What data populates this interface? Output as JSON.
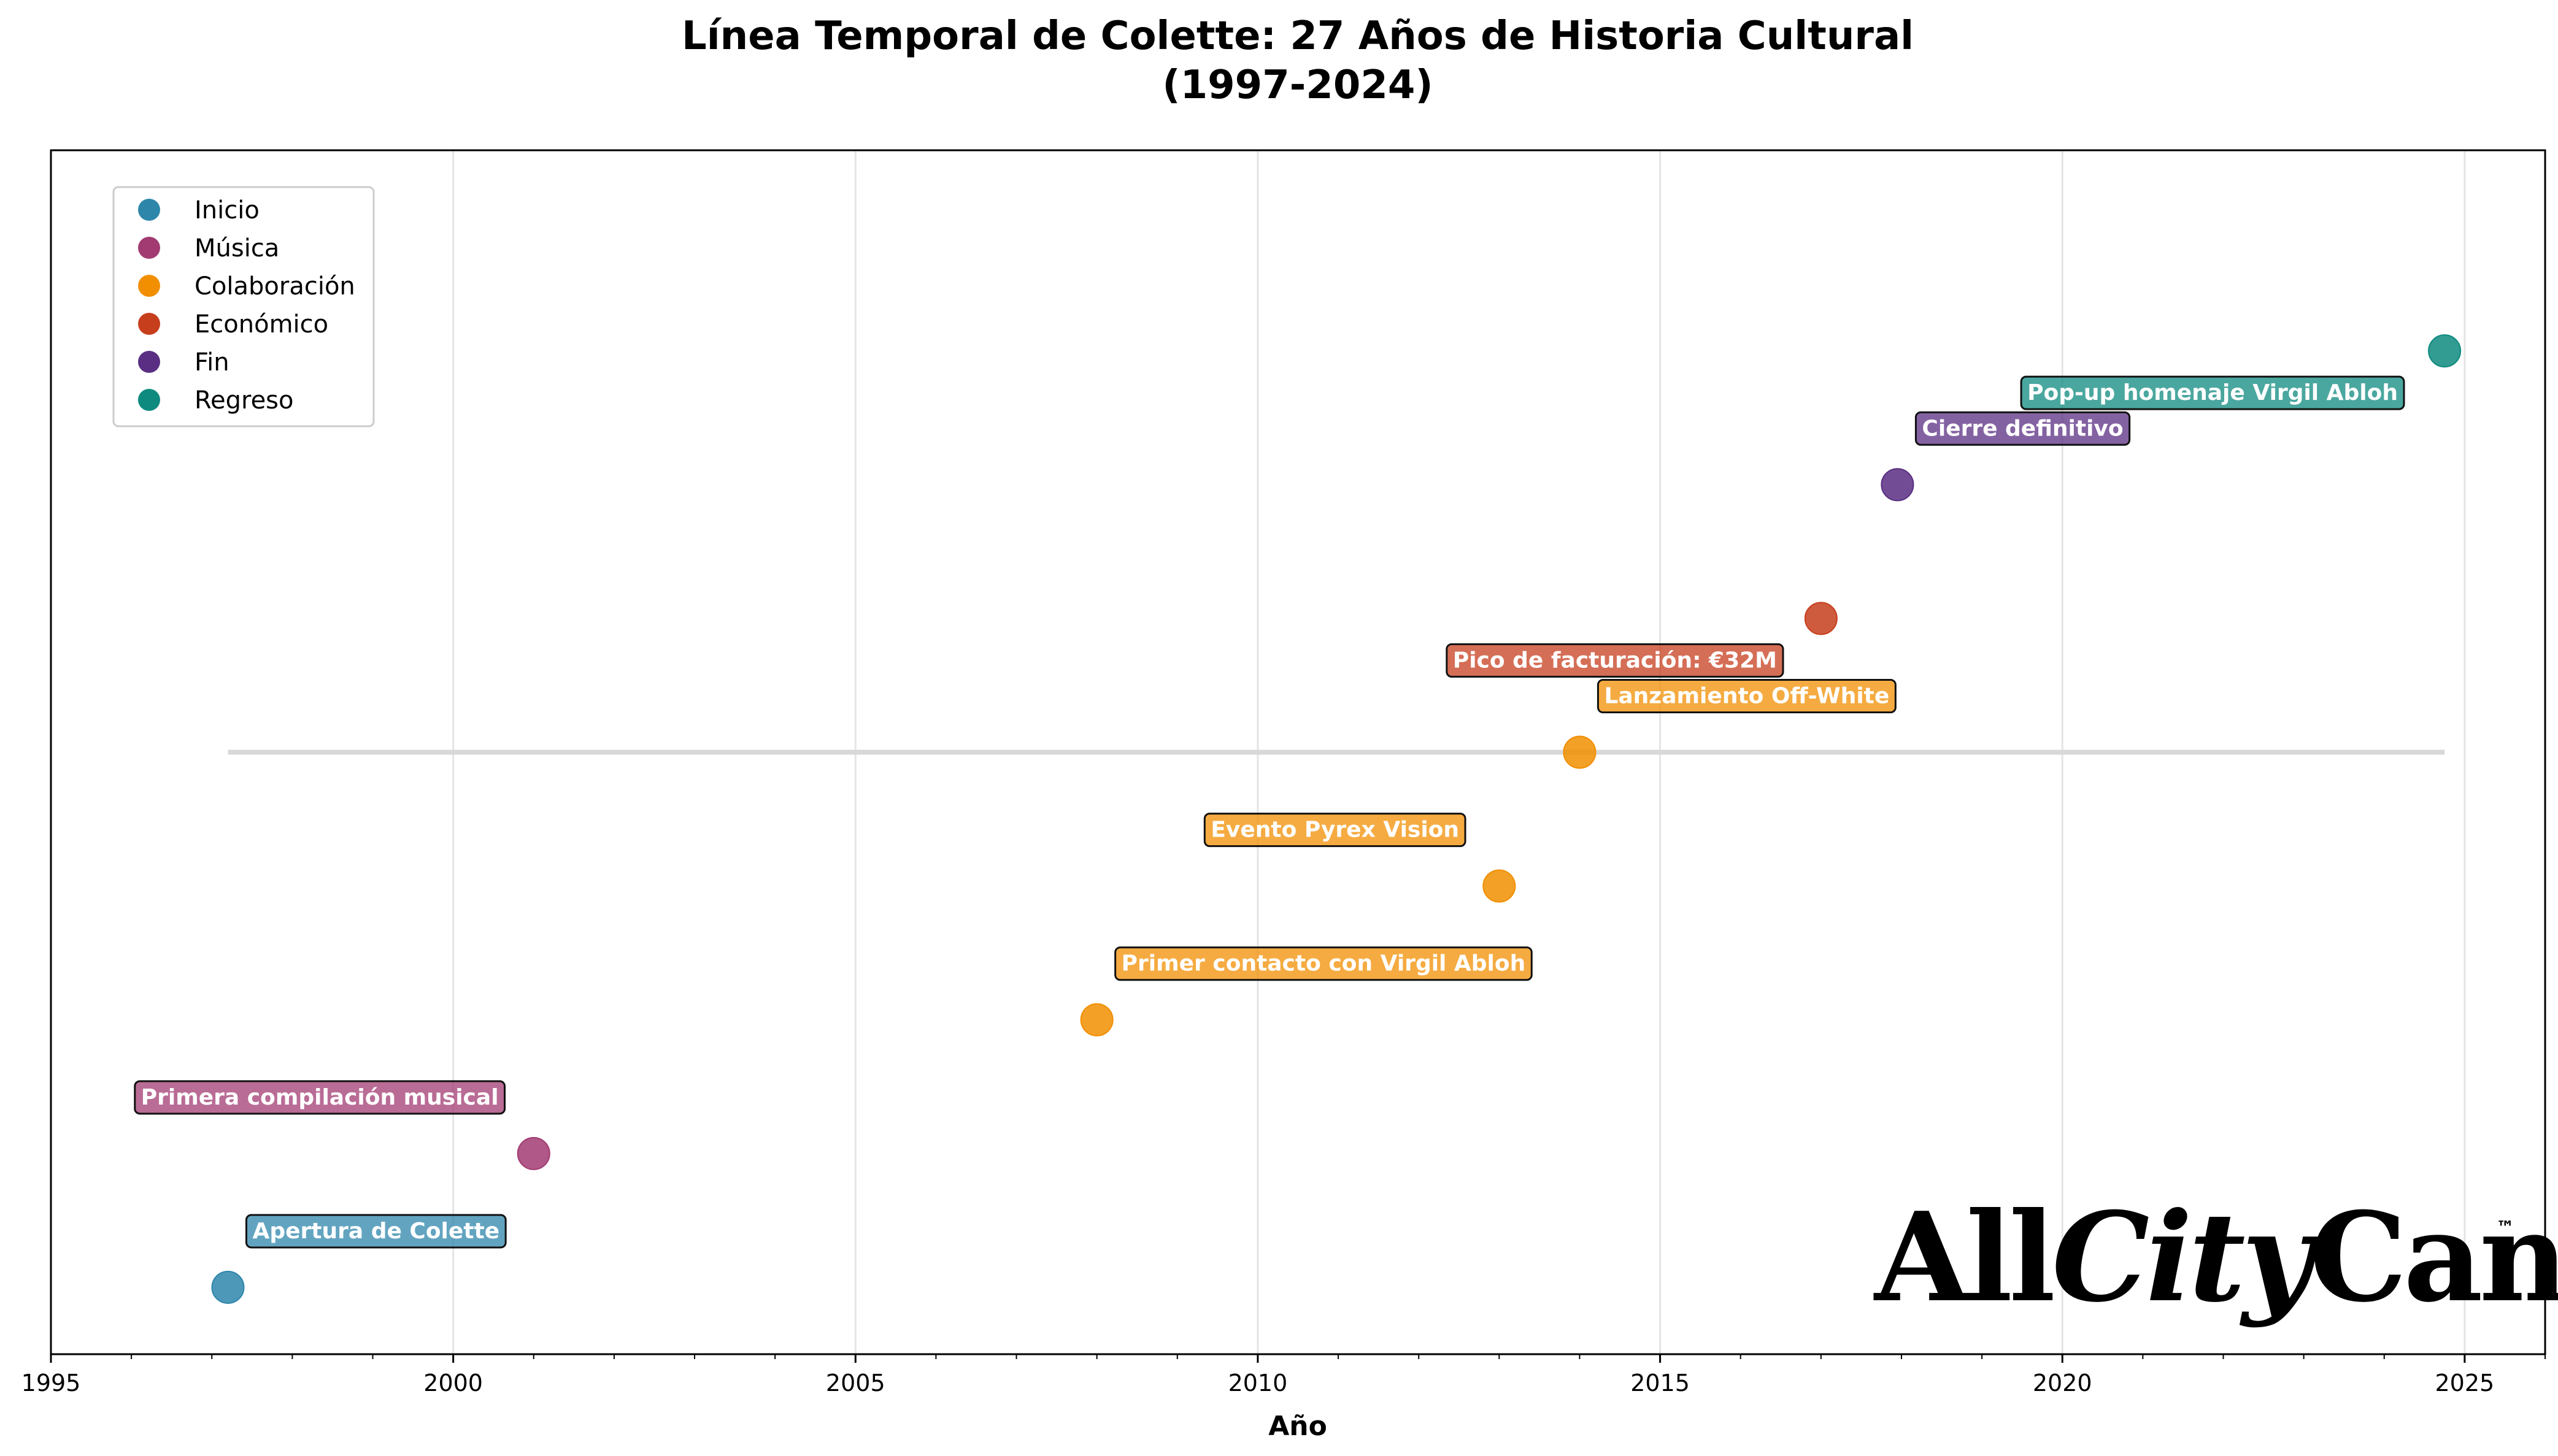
{
  "chart_data": {
    "type": "scatter",
    "title_line1": "Línea Temporal de Colette: 27 Años de Historia Cultural",
    "title_line2": "(1997-2024)",
    "xlabel": "Año",
    "ylabel": "",
    "xlim": [
      1995,
      2026
    ],
    "ylim": [
      -0.5,
      8.5
    ],
    "x_ticks": [
      "1995",
      "2000",
      "2005",
      "2010",
      "2015",
      "2020",
      "2025"
    ],
    "grid": true,
    "legend_position": "top-left",
    "categories": [
      {
        "name": "Inicio",
        "color": "#2E86AB"
      },
      {
        "name": "Música",
        "color": "#A23B72"
      },
      {
        "name": "Colaboración",
        "color": "#F18F01"
      },
      {
        "name": "Económico",
        "color": "#C73E1D"
      },
      {
        "name": "Fin",
        "color": "#592E83"
      },
      {
        "name": "Regreso",
        "color": "#0E8A7F"
      }
    ],
    "events": [
      {
        "x": 1997.2,
        "y": 0,
        "category": "Inicio",
        "label": "Apertura de Colette"
      },
      {
        "x": 2001.0,
        "y": 1,
        "category": "Música",
        "label": "Primera compilación musical"
      },
      {
        "x": 2008.0,
        "y": 2,
        "category": "Colaboración",
        "label": "Primer contacto con Virgil Abloh"
      },
      {
        "x": 2013.0,
        "y": 3,
        "category": "Colaboración",
        "label": "Evento Pyrex Vision"
      },
      {
        "x": 2014.0,
        "y": 4,
        "category": "Colaboración",
        "label": "Lanzamiento Off-White"
      },
      {
        "x": 2017.0,
        "y": 5,
        "category": "Económico",
        "label": "Pico de facturación: €32M"
      },
      {
        "x": 2017.95,
        "y": 6,
        "category": "Fin",
        "label": "Cierre definitivo"
      },
      {
        "x": 2024.75,
        "y": 7,
        "category": "Regreso",
        "label": "Pop-up homenaje Virgil Abloh"
      }
    ],
    "baseline": {
      "x_start": 1997.2,
      "x_end": 2024.75,
      "y": 4
    }
  },
  "watermark": {
    "text_1": "All",
    "text_2": "City",
    "text_3": "Canvas",
    "tm": "™"
  }
}
